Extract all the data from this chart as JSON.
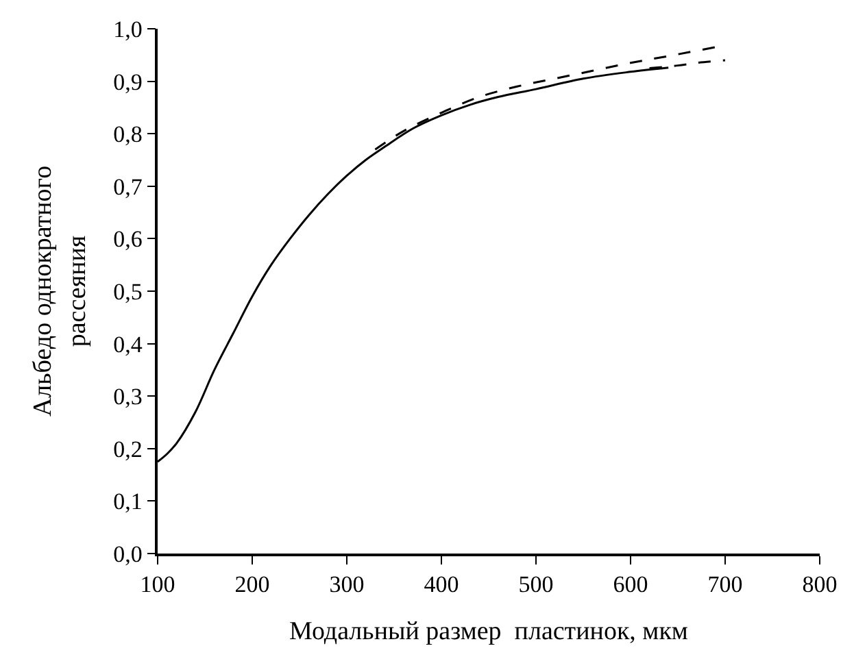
{
  "chart_data": {
    "type": "line",
    "xlabel": "Модальный размер  пластинок, мкм",
    "ylabel": "Альбедо однократного\nрассеяния",
    "xlim": [
      100,
      800
    ],
    "ylim": [
      0,
      1
    ],
    "xticks": [
      100,
      200,
      300,
      400,
      500,
      600,
      700,
      800
    ],
    "yticks": [
      {
        "value": 0,
        "label": "0,0"
      },
      {
        "value": 0.1,
        "label": "0,1"
      },
      {
        "value": 0.2,
        "label": "0,2"
      },
      {
        "value": 0.3,
        "label": "0,3"
      },
      {
        "value": 0.4,
        "label": "0,4"
      },
      {
        "value": 0.5,
        "label": "0,5"
      },
      {
        "value": 0.6,
        "label": "0,6"
      },
      {
        "value": 0.7,
        "label": "0,7"
      },
      {
        "value": 0.8,
        "label": "0,8"
      },
      {
        "value": 0.9,
        "label": "0,9"
      },
      {
        "value": 1,
        "label": "1,0"
      }
    ],
    "series": [
      {
        "color": "#000000",
        "line_style": "solid",
        "x": [
          100,
          110,
          120,
          140,
          160,
          180,
          200,
          220,
          240,
          260,
          280,
          300,
          320,
          340,
          370,
          400,
          430,
          460,
          500,
          550,
          600,
          640
        ],
        "values": [
          0.175,
          0.19,
          0.21,
          0.27,
          0.35,
          0.42,
          0.49,
          0.55,
          0.6,
          0.645,
          0.685,
          0.72,
          0.75,
          0.775,
          0.81,
          0.835,
          0.855,
          0.87,
          0.885,
          0.905,
          0.918,
          0.926
        ]
      },
      {
        "color": "#000000",
        "line_style": "dashed",
        "x": [
          330,
          360,
          400,
          440,
          480,
          520,
          560,
          600,
          640,
          690
        ],
        "values": [
          0.77,
          0.805,
          0.84,
          0.87,
          0.89,
          0.905,
          0.92,
          0.935,
          0.948,
          0.965
        ]
      },
      {
        "color": "#000000",
        "line_style": "dashed",
        "x": [
          620,
          650,
          670,
          700
        ],
        "values": [
          0.925,
          0.93,
          0.935,
          0.94
        ]
      }
    ]
  }
}
